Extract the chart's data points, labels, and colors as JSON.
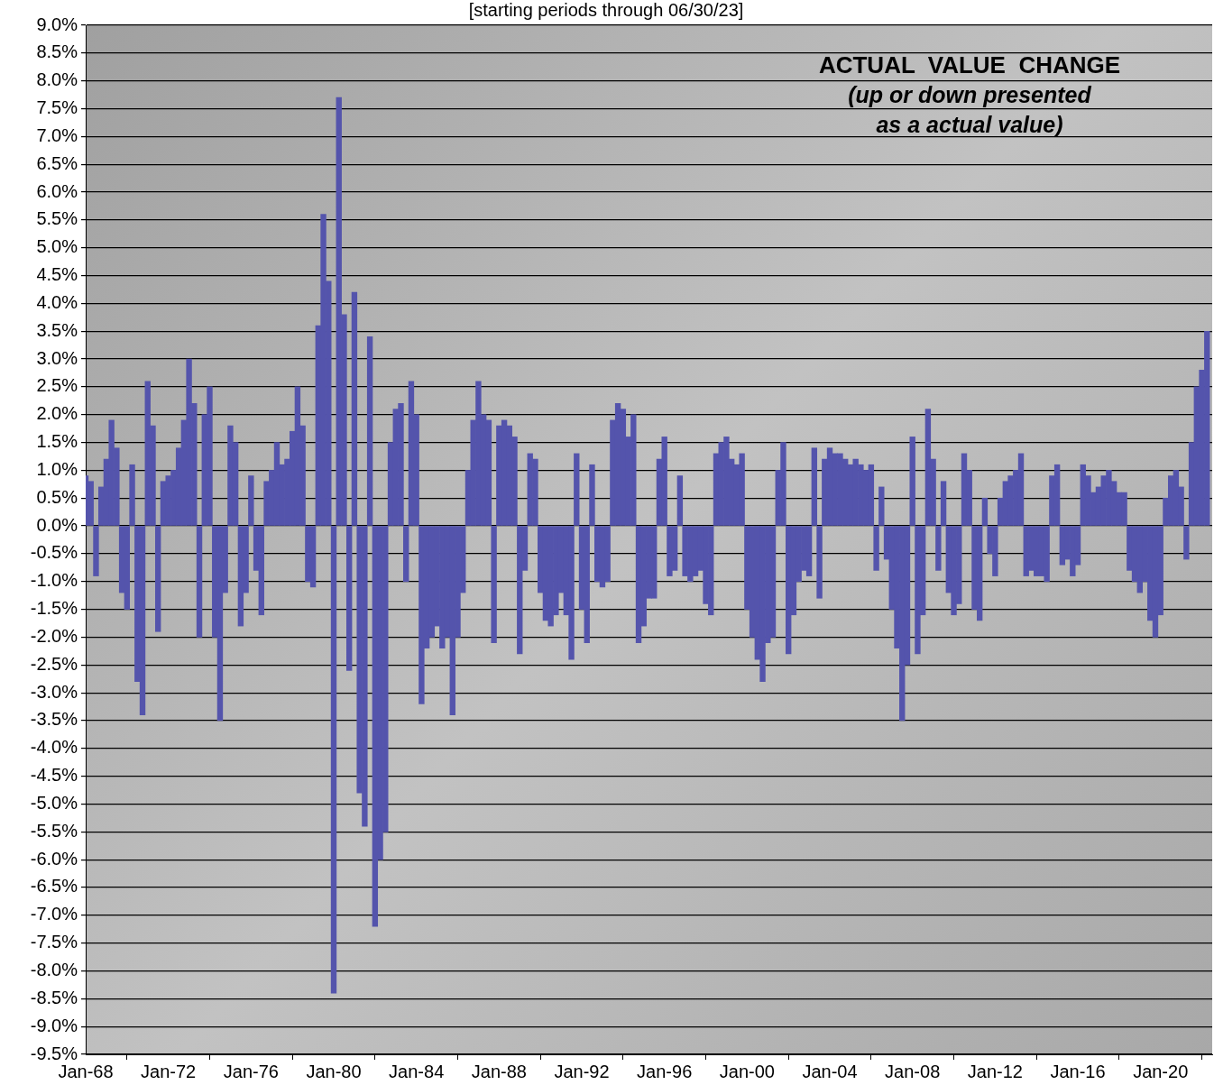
{
  "chart_data": {
    "type": "bar",
    "subtitle": "[starting periods through 06/30/23]",
    "annotations": [
      "ACTUAL  VALUE  CHANGE",
      "(up or down presented",
      "as a actual value)"
    ],
    "x": [
      "1968-01",
      "1968-04",
      "1968-07",
      "1968-10",
      "1969-01",
      "1969-04",
      "1969-07",
      "1969-10",
      "1970-01",
      "1970-04",
      "1970-07",
      "1970-10",
      "1971-01",
      "1971-04",
      "1971-07",
      "1971-10",
      "1972-01",
      "1972-04",
      "1972-07",
      "1972-10",
      "1973-01",
      "1973-04",
      "1973-07",
      "1973-10",
      "1974-01",
      "1974-04",
      "1974-07",
      "1974-10",
      "1975-01",
      "1975-04",
      "1975-07",
      "1975-10",
      "1976-01",
      "1976-04",
      "1976-07",
      "1976-10",
      "1977-01",
      "1977-04",
      "1977-07",
      "1977-10",
      "1978-01",
      "1978-04",
      "1978-07",
      "1978-10",
      "1979-01",
      "1979-04",
      "1979-07",
      "1979-10",
      "1980-01",
      "1980-04",
      "1980-07",
      "1980-10",
      "1981-01",
      "1981-04",
      "1981-07",
      "1981-10",
      "1982-01",
      "1982-04",
      "1982-07",
      "1982-10",
      "1983-01",
      "1983-04",
      "1983-07",
      "1983-10",
      "1984-01",
      "1984-04",
      "1984-07",
      "1984-10",
      "1985-01",
      "1985-04",
      "1985-07",
      "1985-10",
      "1986-01",
      "1986-04",
      "1986-07",
      "1986-10",
      "1987-01",
      "1987-04",
      "1987-07",
      "1987-10",
      "1988-01",
      "1988-04",
      "1988-07",
      "1988-10",
      "1989-01",
      "1989-04",
      "1989-07",
      "1989-10",
      "1990-01",
      "1990-04",
      "1990-07",
      "1990-10",
      "1991-01",
      "1991-04",
      "1991-07",
      "1991-10",
      "1992-01",
      "1992-04",
      "1992-07",
      "1992-10",
      "1993-01",
      "1993-04",
      "1993-07",
      "1993-10",
      "1994-01",
      "1994-04",
      "1994-07",
      "1994-10",
      "1995-01",
      "1995-04",
      "1995-07",
      "1995-10",
      "1996-01",
      "1996-04",
      "1996-07",
      "1996-10",
      "1997-01",
      "1997-04",
      "1997-07",
      "1997-10",
      "1998-01",
      "1998-04",
      "1998-07",
      "1998-10",
      "1999-01",
      "1999-04",
      "1999-07",
      "1999-10",
      "2000-01",
      "2000-04",
      "2000-07",
      "2000-10",
      "2001-01",
      "2001-04",
      "2001-07",
      "2001-10",
      "2002-01",
      "2002-04",
      "2002-07",
      "2002-10",
      "2003-01",
      "2003-04",
      "2003-07",
      "2003-10",
      "2004-01",
      "2004-04",
      "2004-07",
      "2004-10",
      "2005-01",
      "2005-04",
      "2005-07",
      "2005-10",
      "2006-01",
      "2006-04",
      "2006-07",
      "2006-10",
      "2007-01",
      "2007-04",
      "2007-07",
      "2007-10",
      "2008-01",
      "2008-04",
      "2008-07",
      "2008-10",
      "2009-01",
      "2009-04",
      "2009-07",
      "2009-10",
      "2010-01",
      "2010-04",
      "2010-07",
      "2010-10",
      "2011-01",
      "2011-04",
      "2011-07",
      "2011-10",
      "2012-01",
      "2012-04",
      "2012-07",
      "2012-10",
      "2013-01",
      "2013-04",
      "2013-07",
      "2013-10",
      "2014-01",
      "2014-04",
      "2014-07",
      "2014-10",
      "2015-01",
      "2015-04",
      "2015-07",
      "2015-10",
      "2016-01",
      "2016-04",
      "2016-07",
      "2016-10",
      "2017-01",
      "2017-04",
      "2017-07",
      "2017-10",
      "2018-01",
      "2018-04",
      "2018-07",
      "2018-10",
      "2019-01",
      "2019-04",
      "2019-07",
      "2019-10",
      "2020-01",
      "2020-04",
      "2020-07",
      "2020-10",
      "2021-01",
      "2021-04",
      "2021-07",
      "2021-10",
      "2022-01",
      "2022-04"
    ],
    "values": [
      0.9,
      0.8,
      -0.9,
      0.7,
      1.2,
      1.9,
      1.4,
      -1.2,
      -1.5,
      1.1,
      -2.8,
      -3.4,
      2.6,
      1.8,
      -1.9,
      0.8,
      0.9,
      1.0,
      1.4,
      1.9,
      3.0,
      2.2,
      -2.0,
      2.0,
      2.5,
      -2.0,
      -3.5,
      -1.2,
      1.8,
      1.5,
      -1.8,
      -1.2,
      0.9,
      -0.8,
      -1.6,
      0.8,
      1.0,
      1.5,
      1.1,
      1.2,
      1.7,
      2.5,
      1.8,
      -1.0,
      -1.1,
      3.6,
      5.6,
      4.4,
      -8.4,
      7.7,
      3.8,
      -2.6,
      4.2,
      -4.8,
      -5.4,
      3.4,
      -7.2,
      -6.0,
      -5.5,
      1.5,
      2.1,
      2.2,
      -1.0,
      2.6,
      2.0,
      -3.2,
      -2.2,
      -2.0,
      -1.8,
      -2.2,
      -2.0,
      -3.4,
      -2.0,
      -1.2,
      1.0,
      1.9,
      2.6,
      2.0,
      1.9,
      -2.1,
      1.8,
      1.9,
      1.8,
      1.6,
      -2.3,
      -0.8,
      1.3,
      1.2,
      -1.2,
      -1.7,
      -1.8,
      -1.6,
      -1.2,
      -1.6,
      -2.4,
      1.3,
      -1.5,
      -2.1,
      1.1,
      -1.0,
      -1.1,
      -1.0,
      1.9,
      2.2,
      2.1,
      1.6,
      2.0,
      -2.1,
      -1.8,
      -1.3,
      -1.3,
      1.2,
      1.6,
      -0.9,
      -0.8,
      0.9,
      -0.9,
      -1.0,
      -0.9,
      -0.8,
      -1.4,
      -1.6,
      1.3,
      1.5,
      1.6,
      1.2,
      1.1,
      1.3,
      -1.5,
      -2.0,
      -2.4,
      -2.8,
      -2.1,
      -2.0,
      1.0,
      1.5,
      -2.3,
      -1.6,
      -1.0,
      -0.8,
      -0.9,
      1.4,
      -1.3,
      1.2,
      1.4,
      1.3,
      1.3,
      1.2,
      1.1,
      1.2,
      1.1,
      1.0,
      1.1,
      -0.8,
      0.7,
      -0.6,
      -1.5,
      -2.2,
      -3.5,
      -2.5,
      1.6,
      -2.3,
      -1.6,
      2.1,
      1.2,
      -0.8,
      0.8,
      -1.2,
      -1.6,
      -1.4,
      1.3,
      1.0,
      -1.5,
      -1.7,
      0.5,
      -0.5,
      -0.9,
      0.5,
      0.8,
      0.9,
      1.0,
      1.3,
      -0.9,
      -0.8,
      -0.9,
      -0.9,
      -1.0,
      0.9,
      1.1,
      -0.7,
      -0.6,
      -0.9,
      -0.7,
      1.1,
      0.9,
      0.6,
      0.7,
      0.9,
      1.0,
      0.8,
      0.6,
      0.6,
      -0.8,
      -1.0,
      -1.2,
      -1.0,
      -1.7,
      -2.0,
      -1.6,
      0.5,
      0.9,
      1.0,
      0.7,
      -0.6,
      1.5,
      2.5,
      2.8,
      3.5
    ],
    "color": "#5454ac",
    "xlim": [
      "1968-01",
      "2022-07"
    ],
    "xticks": [
      {
        "value": "1968-01",
        "label": "Jan-68"
      },
      {
        "value": "1972-01",
        "label": "Jan-72"
      },
      {
        "value": "1976-01",
        "label": "Jan-76"
      },
      {
        "value": "1980-01",
        "label": "Jan-80"
      },
      {
        "value": "1984-01",
        "label": "Jan-84"
      },
      {
        "value": "1988-01",
        "label": "Jan-88"
      },
      {
        "value": "1992-01",
        "label": "Jan-92"
      },
      {
        "value": "1996-01",
        "label": "Jan-96"
      },
      {
        "value": "2000-01",
        "label": "Jan-00"
      },
      {
        "value": "2004-01",
        "label": "Jan-04"
      },
      {
        "value": "2008-01",
        "label": "Jan-08"
      },
      {
        "value": "2012-01",
        "label": "Jan-12"
      },
      {
        "value": "2016-01",
        "label": "Jan-16"
      },
      {
        "value": "2020-01",
        "label": "Jan-20"
      }
    ],
    "ylim": [
      -9.5,
      9.0
    ],
    "yticks": [
      {
        "value": 9.0,
        "label": "9.0%"
      },
      {
        "value": 8.5,
        "label": "8.5%"
      },
      {
        "value": 8.0,
        "label": "8.0%"
      },
      {
        "value": 7.5,
        "label": "7.5%"
      },
      {
        "value": 7.0,
        "label": "7.0%"
      },
      {
        "value": 6.5,
        "label": "6.5%"
      },
      {
        "value": 6.0,
        "label": "6.0%"
      },
      {
        "value": 5.5,
        "label": "5.5%"
      },
      {
        "value": 5.0,
        "label": "5.0%"
      },
      {
        "value": 4.5,
        "label": "4.5%"
      },
      {
        "value": 4.0,
        "label": "4.0%"
      },
      {
        "value": 3.5,
        "label": "3.5%"
      },
      {
        "value": 3.0,
        "label": "3.0%"
      },
      {
        "value": 2.5,
        "label": "2.5%"
      },
      {
        "value": 2.0,
        "label": "2.0%"
      },
      {
        "value": 1.5,
        "label": "1.5%"
      },
      {
        "value": 1.0,
        "label": "1.0%"
      },
      {
        "value": 0.5,
        "label": "0.5%"
      },
      {
        "value": 0,
        "label": "0.0%"
      },
      {
        "value": -0.5,
        "label": "-0.5%"
      },
      {
        "value": -1.0,
        "label": "-1.0%"
      },
      {
        "value": -1.5,
        "label": "-1.5%"
      },
      {
        "value": -2.0,
        "label": "-2.0%"
      },
      {
        "value": -2.5,
        "label": "-2.5%"
      },
      {
        "value": -3.0,
        "label": "-3.0%"
      },
      {
        "value": -3.5,
        "label": "-3.5%"
      },
      {
        "value": -4.0,
        "label": "-4.0%"
      },
      {
        "value": -4.5,
        "label": "-4.5%"
      },
      {
        "value": -5.0,
        "label": "-5.0%"
      },
      {
        "value": -5.5,
        "label": "-5.5%"
      },
      {
        "value": -6.0,
        "label": "-6.0%"
      },
      {
        "value": -6.5,
        "label": "-6.5%"
      },
      {
        "value": -7.0,
        "label": "-7.0%"
      },
      {
        "value": -7.5,
        "label": "-7.5%"
      },
      {
        "value": -8.0,
        "label": "-8.0%"
      },
      {
        "value": -8.5,
        "label": "-8.5%"
      },
      {
        "value": -9.0,
        "label": "-9.0%"
      },
      {
        "value": -9.5,
        "label": "-9.5%"
      }
    ],
    "grid": "y",
    "legend": false
  }
}
